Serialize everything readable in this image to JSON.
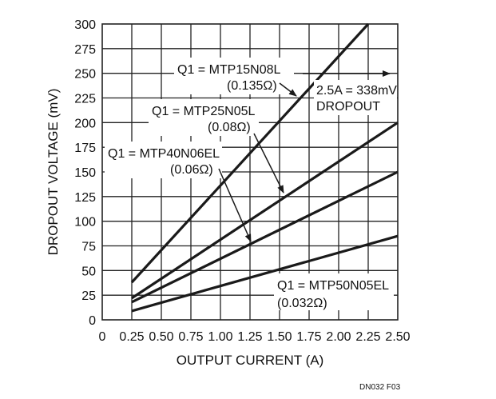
{
  "chart_data": {
    "type": "line",
    "title": "",
    "xlabel": "OUTPUT CURRENT (A)",
    "ylabel": "DROPOUT VOLTAGE (mV)",
    "xlim": [
      0,
      2.5
    ],
    "ylim": [
      0,
      300
    ],
    "grid": true,
    "x_ticks": [
      "0",
      "0.25",
      "0.50",
      "0.75",
      "1.00",
      "1.25",
      "1.50",
      "1.75",
      "2.00",
      "2.25",
      "2.50"
    ],
    "y_ticks": [
      "0",
      "25",
      "50",
      "75",
      "100",
      "125",
      "150",
      "175",
      "200",
      "225",
      "250",
      "275",
      "300"
    ],
    "series": [
      {
        "name": "Q1 = MTP15N08L (0.135Ω)",
        "x": [
          0.25,
          2.25
        ],
        "y": [
          38,
          300
        ]
      },
      {
        "name": "Q1 = MTP25N05L (0.08Ω)",
        "x": [
          0.25,
          2.5
        ],
        "y": [
          22,
          200
        ]
      },
      {
        "name": "Q1 = MTP40N06EL (0.06Ω)",
        "x": [
          0.25,
          2.5
        ],
        "y": [
          18,
          150
        ]
      },
      {
        "name": "Q1 = MTP50N05EL (0.032Ω)",
        "x": [
          0.25,
          2.5
        ],
        "y": [
          9,
          85
        ]
      }
    ],
    "annotations": [
      {
        "line1": "Q1 = MTP15N08L",
        "line2": "(0.135Ω)"
      },
      {
        "line1": "Q1 = MTP25N05L",
        "line2": "(0.08Ω)"
      },
      {
        "line1": "Q1 = MTP40N06EL",
        "line2": "(0.06Ω)"
      },
      {
        "line1": "Q1 = MTP50N05EL",
        "line2": "(0.032Ω)"
      },
      {
        "line1": "2.5A = 338mV",
        "line2": "DROPOUT"
      }
    ],
    "footer": "DN032 F03"
  }
}
